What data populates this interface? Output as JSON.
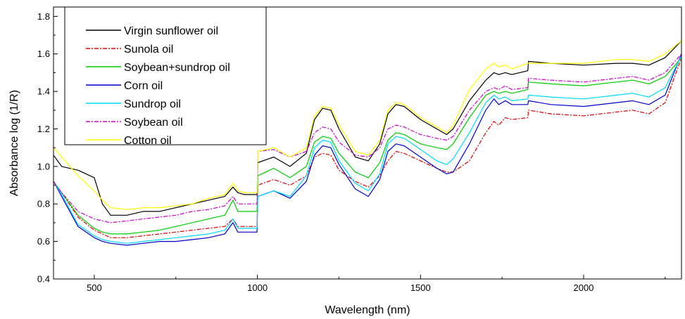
{
  "chart_data": {
    "type": "line",
    "xlabel": "Wavelength (nm)",
    "ylabel": "Absorbance log (1/R)",
    "xlim": [
      375,
      2300
    ],
    "ylim": [
      0.4,
      1.85
    ],
    "xticks": [
      500,
      1000,
      1500,
      2000
    ],
    "xtick_labels": [
      "500",
      "1000",
      "1500",
      "2000"
    ],
    "yticks": [
      0.4,
      0.6,
      0.8,
      1.0,
      1.2,
      1.4,
      1.6,
      1.8
    ],
    "ytick_labels": [
      "0.4",
      "0.6",
      "0.8",
      "1.0",
      "1.2",
      "1.4",
      "1.6",
      "1.8"
    ],
    "grid": false,
    "legend_position": "top-left",
    "x": [
      375,
      400,
      450,
      500,
      525,
      550,
      600,
      650,
      700,
      750,
      800,
      850,
      900,
      925,
      940,
      960,
      999,
      1001,
      1050,
      1100,
      1150,
      1175,
      1200,
      1225,
      1250,
      1300,
      1340,
      1375,
      1400,
      1425,
      1450,
      1500,
      1550,
      1580,
      1600,
      1650,
      1700,
      1725,
      1740,
      1760,
      1780,
      1829,
      1831,
      1900,
      2000,
      2100,
      2150,
      2200,
      2250,
      2300
    ],
    "series": [
      {
        "name": "Virgin sunflower oil",
        "color": "#000000",
        "dash": "",
        "values": [
          1.06,
          1.0,
          0.98,
          0.94,
          0.8,
          0.74,
          0.74,
          0.76,
          0.76,
          0.78,
          0.8,
          0.82,
          0.84,
          0.89,
          0.86,
          0.85,
          0.85,
          1.02,
          1.05,
          1.0,
          1.07,
          1.25,
          1.31,
          1.3,
          1.2,
          1.05,
          1.03,
          1.12,
          1.28,
          1.33,
          1.32,
          1.25,
          1.2,
          1.17,
          1.2,
          1.35,
          1.46,
          1.5,
          1.49,
          1.5,
          1.49,
          1.51,
          1.56,
          1.55,
          1.54,
          1.55,
          1.55,
          1.54,
          1.58,
          1.67
        ]
      },
      {
        "name": "Sunola oil",
        "color": "#dd0000",
        "dash": "6,2,2,2",
        "values": [
          0.92,
          0.86,
          0.73,
          0.66,
          0.64,
          0.62,
          0.62,
          0.63,
          0.64,
          0.65,
          0.66,
          0.67,
          0.68,
          0.72,
          0.68,
          0.68,
          0.68,
          0.9,
          0.93,
          0.9,
          0.95,
          1.05,
          1.07,
          1.06,
          0.98,
          0.92,
          0.89,
          0.95,
          1.03,
          1.08,
          1.07,
          1.03,
          0.99,
          0.97,
          0.97,
          1.03,
          1.18,
          1.24,
          1.22,
          1.26,
          1.25,
          1.26,
          1.3,
          1.28,
          1.27,
          1.29,
          1.3,
          1.28,
          1.34,
          1.58
        ]
      },
      {
        "name": "Soybean+sundrop oil",
        "color": "#00cc00",
        "dash": "",
        "values": [
          0.92,
          0.86,
          0.74,
          0.67,
          0.65,
          0.64,
          0.64,
          0.65,
          0.66,
          0.68,
          0.7,
          0.72,
          0.74,
          0.82,
          0.76,
          0.76,
          0.76,
          0.95,
          0.99,
          0.94,
          1.0,
          1.13,
          1.16,
          1.15,
          1.07,
          0.97,
          0.94,
          1.02,
          1.14,
          1.18,
          1.17,
          1.12,
          1.1,
          1.09,
          1.12,
          1.26,
          1.38,
          1.4,
          1.39,
          1.4,
          1.39,
          1.41,
          1.45,
          1.44,
          1.43,
          1.45,
          1.46,
          1.44,
          1.48,
          1.58
        ]
      },
      {
        "name": "Corn oil",
        "color": "#0000cc",
        "dash": "",
        "values": [
          0.92,
          0.84,
          0.68,
          0.62,
          0.6,
          0.59,
          0.58,
          0.59,
          0.6,
          0.6,
          0.61,
          0.62,
          0.64,
          0.7,
          0.65,
          0.65,
          0.65,
          0.84,
          0.87,
          0.83,
          0.92,
          1.06,
          1.11,
          1.1,
          1.01,
          0.88,
          0.84,
          0.93,
          1.08,
          1.12,
          1.11,
          1.05,
          0.99,
          0.96,
          0.97,
          1.12,
          1.3,
          1.36,
          1.33,
          1.35,
          1.33,
          1.33,
          1.35,
          1.33,
          1.32,
          1.34,
          1.35,
          1.33,
          1.38,
          1.6
        ]
      },
      {
        "name": "Sundrop oil",
        "color": "#00d8ff",
        "dash": "",
        "values": [
          0.92,
          0.85,
          0.69,
          0.63,
          0.61,
          0.6,
          0.59,
          0.6,
          0.61,
          0.62,
          0.63,
          0.64,
          0.66,
          0.72,
          0.67,
          0.67,
          0.67,
          0.84,
          0.87,
          0.84,
          0.95,
          1.1,
          1.14,
          1.13,
          1.03,
          0.91,
          0.87,
          0.96,
          1.12,
          1.16,
          1.15,
          1.09,
          1.03,
          1.01,
          1.04,
          1.18,
          1.34,
          1.38,
          1.36,
          1.37,
          1.35,
          1.36,
          1.38,
          1.37,
          1.36,
          1.38,
          1.39,
          1.37,
          1.42,
          1.59
        ]
      },
      {
        "name": "Soybean oil",
        "color": "#cc00cc",
        "dash": "6,2,2,2",
        "values": [
          0.92,
          0.86,
          0.76,
          0.72,
          0.71,
          0.7,
          0.71,
          0.72,
          0.73,
          0.74,
          0.76,
          0.77,
          0.79,
          0.84,
          0.8,
          0.8,
          0.8,
          1.08,
          1.09,
          1.05,
          1.08,
          1.18,
          1.21,
          1.2,
          1.13,
          1.06,
          1.05,
          1.1,
          1.2,
          1.22,
          1.21,
          1.17,
          1.15,
          1.14,
          1.16,
          1.3,
          1.4,
          1.42,
          1.41,
          1.43,
          1.41,
          1.42,
          1.47,
          1.46,
          1.45,
          1.47,
          1.48,
          1.46,
          1.5,
          1.6
        ]
      },
      {
        "name": "Cotton oil",
        "color": "#ffff00",
        "dash": "",
        "values": [
          1.1,
          1.05,
          0.95,
          0.87,
          0.82,
          0.78,
          0.77,
          0.78,
          0.78,
          0.79,
          0.8,
          0.83,
          0.85,
          0.91,
          0.87,
          0.86,
          0.86,
          1.08,
          1.1,
          1.05,
          1.1,
          1.27,
          1.32,
          1.31,
          1.22,
          1.08,
          1.06,
          1.14,
          1.3,
          1.34,
          1.33,
          1.26,
          1.21,
          1.18,
          1.22,
          1.41,
          1.52,
          1.55,
          1.53,
          1.54,
          1.52,
          1.55,
          1.55,
          1.55,
          1.55,
          1.57,
          1.57,
          1.56,
          1.6,
          1.67
        ]
      }
    ]
  }
}
